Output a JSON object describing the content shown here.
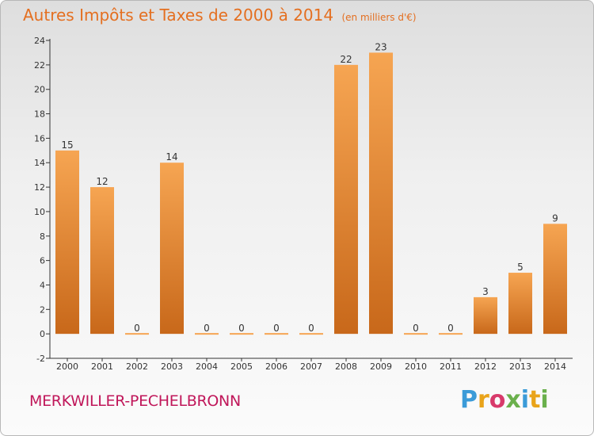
{
  "title": "Autres Impôts et Taxes de 2000 à 2014",
  "subtitle": "(en milliers d'€)",
  "commune": "MERKWILLER-PECHELBRONN",
  "logo": {
    "text": "Proxiti",
    "colors": [
      "#3b9bd8",
      "#e9a41a",
      "#d83a6b",
      "#6ab04c",
      "#3b9bd8",
      "#e9a41a",
      "#6ab04c"
    ]
  },
  "colors": {
    "bar_light": "#f6a552",
    "bar_dark": "#c8681a",
    "accent": "#e46f20"
  },
  "chart_data": {
    "type": "bar",
    "categories": [
      "2000",
      "2001",
      "2002",
      "2003",
      "2004",
      "2005",
      "2006",
      "2007",
      "2008",
      "2009",
      "2010",
      "2011",
      "2012",
      "2013",
      "2014"
    ],
    "values": [
      15,
      12,
      0,
      14,
      0,
      0,
      0,
      0,
      22,
      23,
      0,
      0,
      3,
      5,
      9
    ],
    "ylim": [
      -2,
      24
    ],
    "yticks": [
      -2,
      0,
      2,
      4,
      6,
      8,
      10,
      12,
      14,
      16,
      18,
      20,
      22,
      24
    ],
    "grid": false,
    "legend": "none"
  }
}
